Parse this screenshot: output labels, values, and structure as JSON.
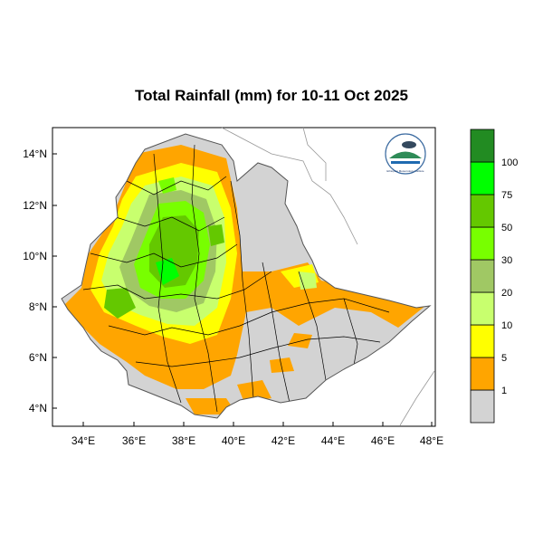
{
  "title": "Total Rainfall (mm) for 10-11 Oct 2025",
  "y_ticks": [
    "14°N",
    "12°N",
    "10°N",
    "8°N",
    "6°N",
    "4°N"
  ],
  "x_ticks": [
    "34°E",
    "36°E",
    "38°E",
    "40°E",
    "42°E",
    "44°E",
    "46°E",
    "48°E"
  ],
  "legend": {
    "labels": [
      "1",
      "5",
      "10",
      "20",
      "30",
      "50",
      "75",
      "100"
    ],
    "colors": [
      "#d3d3d3",
      "#ffa500",
      "#ffff00",
      "#c8ff6e",
      "#a0c864",
      "#78ff00",
      "#64c800",
      "#00ff00",
      "#228b22"
    ]
  },
  "logo_text": "Ethiopian Meteorology Institute",
  "logo_icon": "ethiopian-meteorology-institute-logo"
}
